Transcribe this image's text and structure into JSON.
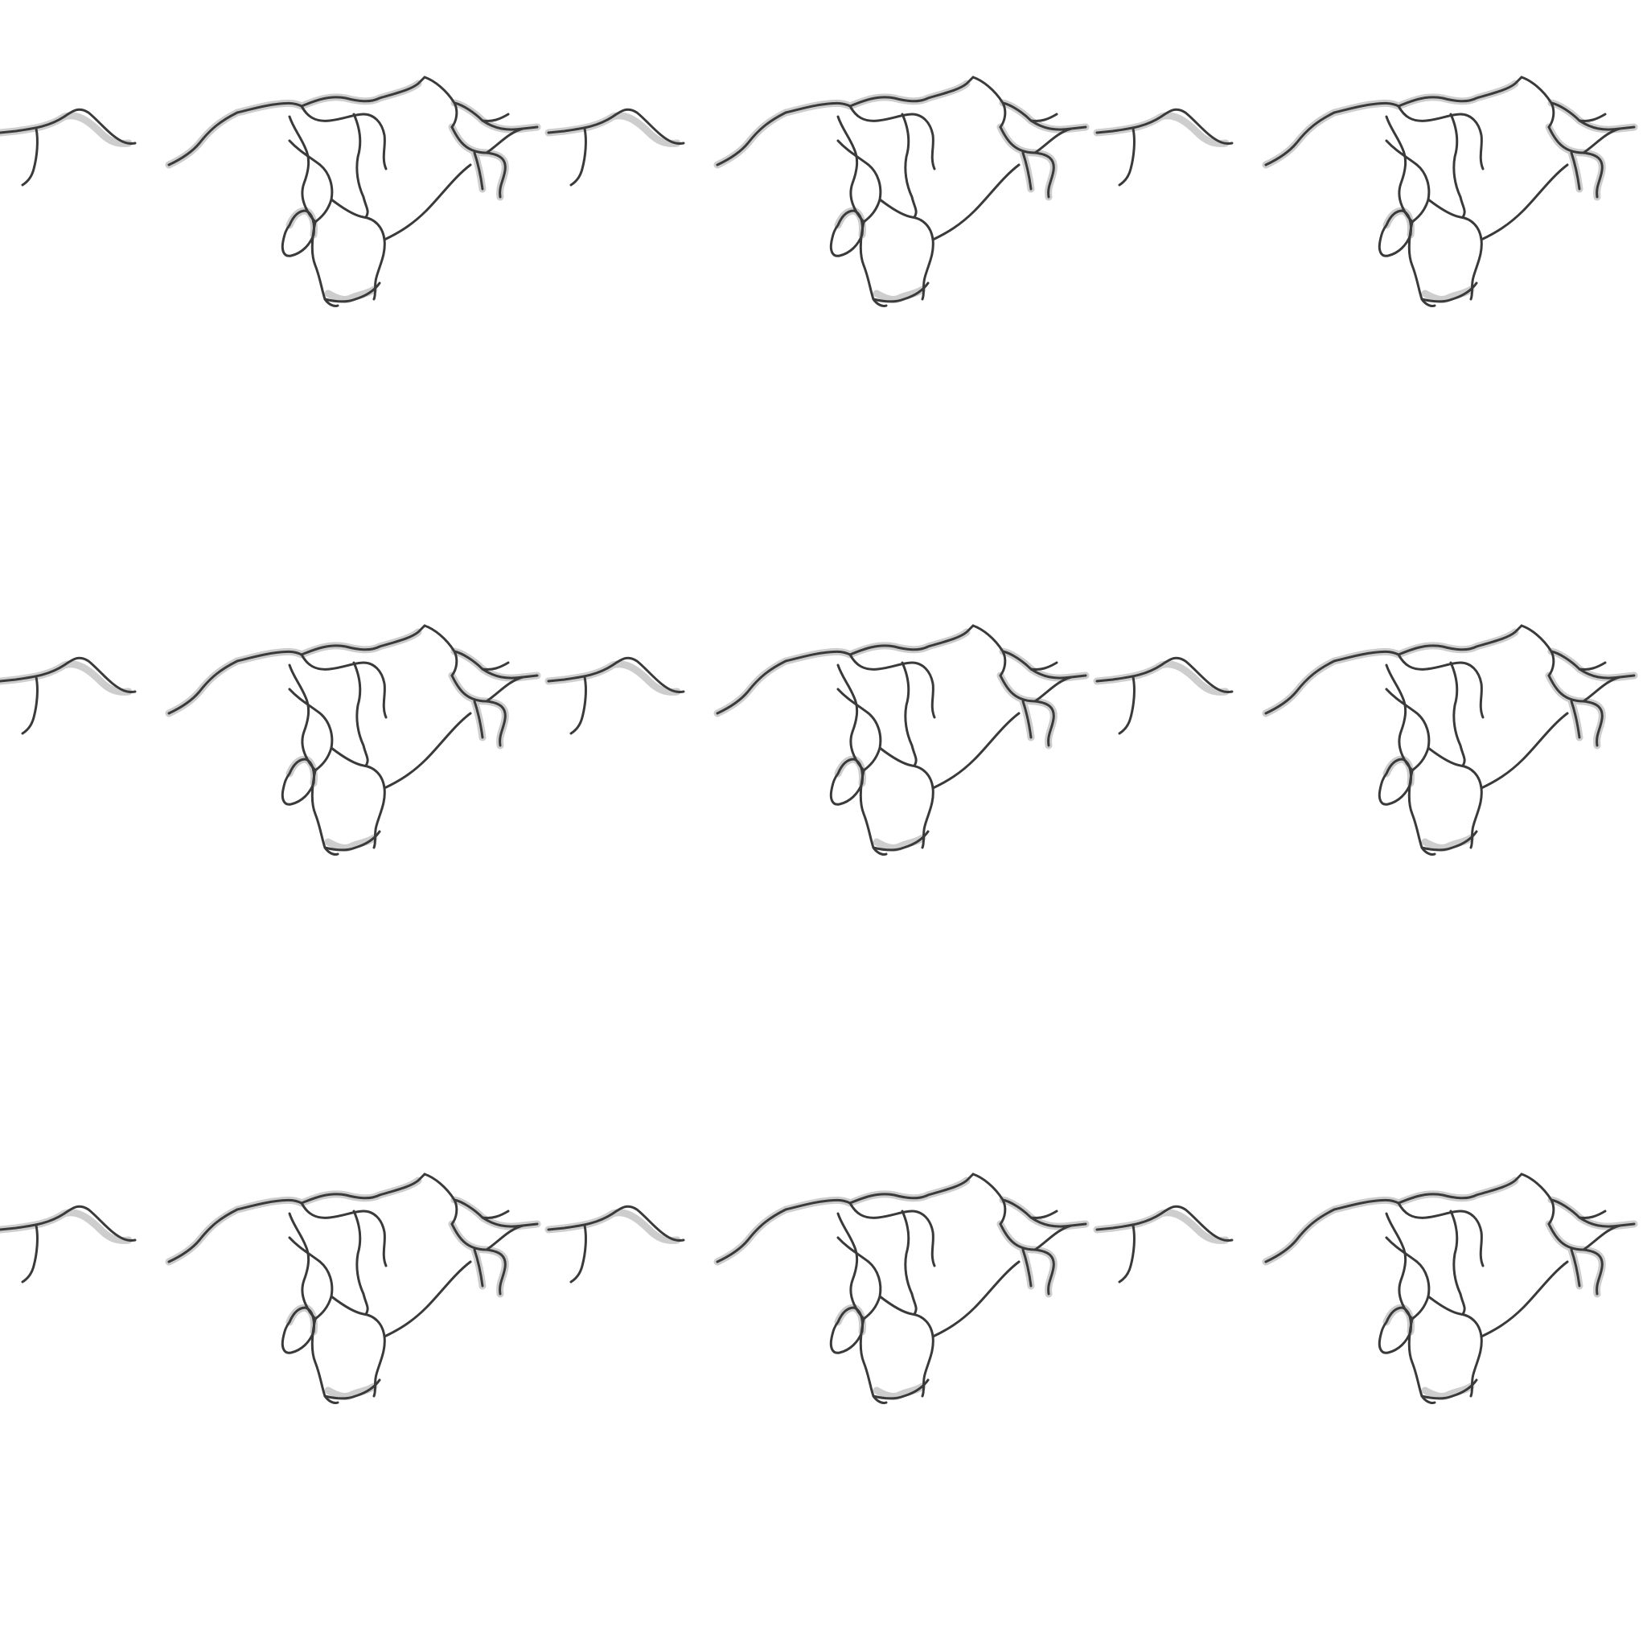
{
  "image": {
    "pattern": "repeating-crack-tile",
    "grid": {
      "columns": 3,
      "rows": 3
    },
    "background_color": "#ffffff",
    "line_color": "#3a3a3a",
    "fill_color": "#9a9a9a"
  }
}
